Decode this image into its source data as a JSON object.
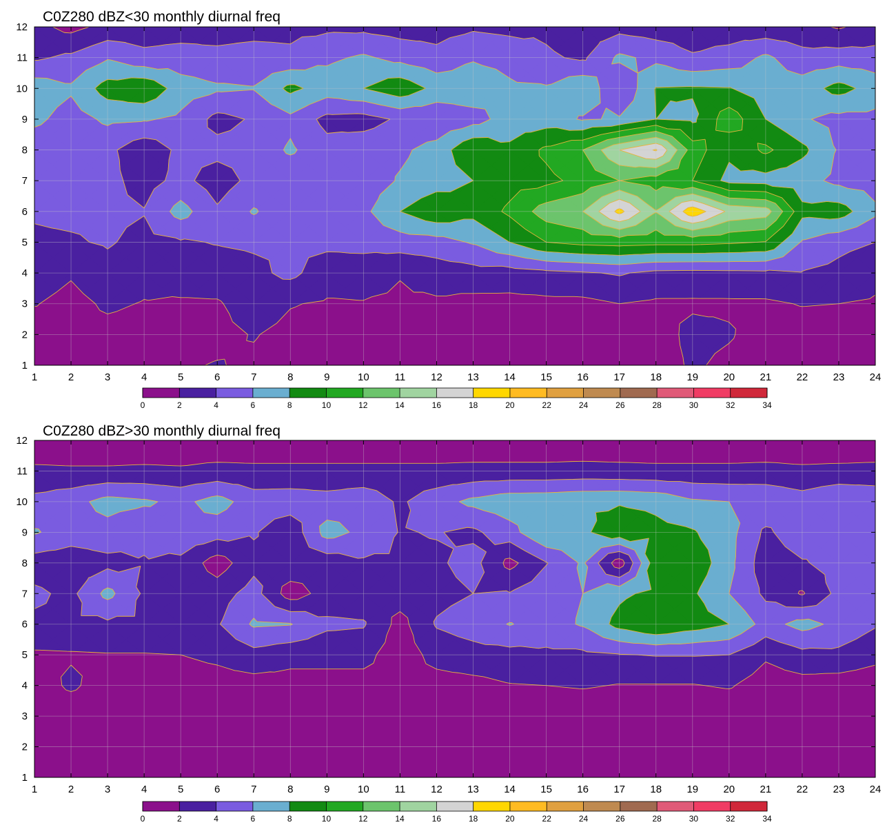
{
  "chart_data": [
    {
      "type": "heatmap",
      "title": "C0Z280 dBZ<30 monthly diurnal freq",
      "x_ticks": [
        1,
        2,
        3,
        4,
        5,
        6,
        7,
        8,
        9,
        10,
        11,
        12,
        13,
        14,
        15,
        16,
        17,
        18,
        19,
        20,
        21,
        22,
        23,
        24
      ],
      "y_ticks": [
        1,
        2,
        3,
        4,
        5,
        6,
        7,
        8,
        9,
        10,
        11,
        12
      ],
      "xlim": [
        1,
        24
      ],
      "ylim": [
        1,
        12
      ],
      "grid": true,
      "colorbar": {
        "levels": [
          0,
          2,
          4,
          6,
          8,
          10,
          12,
          14,
          16,
          18,
          20,
          22,
          24,
          26,
          28,
          30,
          32,
          34
        ],
        "colors": [
          "#8b108b",
          "#4a20a0",
          "#7a5ce0",
          "#6aaed0",
          "#128a12",
          "#22a822",
          "#6cc46c",
          "#a0d4a0",
          "#d4d4d4",
          "#ffd700",
          "#ffbb22",
          "#e0a040",
          "#bf8a50",
          "#a06a50",
          "#e05a78",
          "#f03c64",
          "#d0283a"
        ]
      },
      "x": [
        1,
        2,
        3,
        4,
        5,
        6,
        7,
        8,
        9,
        10,
        11,
        12,
        13,
        14,
        15,
        16,
        17,
        18,
        19,
        20,
        21,
        22,
        23,
        24
      ],
      "y": [
        1,
        2,
        3,
        4,
        5,
        6,
        7,
        8,
        9,
        10,
        11,
        12
      ],
      "z": [
        [
          0.6,
          1.0,
          1.2,
          1.0,
          1.8,
          2.1,
          1.7,
          1.2,
          1.7,
          1.1,
          0.9,
          1.1,
          1.0,
          1.1,
          1.0,
          1.7,
          1.0,
          1.0,
          2.3,
          1.5,
          1.0,
          1.0,
          1.0,
          1.0
        ],
        [
          1.0,
          1.3,
          1.4,
          1.2,
          1.3,
          1.5,
          2.1,
          1.5,
          1.3,
          1.2,
          1.0,
          1.2,
          1.2,
          1.0,
          1.0,
          1.1,
          1.0,
          1.0,
          2.6,
          2.2,
          1.0,
          1.0,
          1.0,
          1.0
        ],
        [
          2.1,
          1.4,
          2.3,
          1.9,
          1.7,
          1.8,
          3.0,
          2.1,
          1.8,
          1.9,
          1.7,
          1.7,
          1.4,
          1.4,
          1.5,
          1.5,
          2.0,
          1.7,
          1.7,
          1.7,
          1.7,
          2.1,
          2.0,
          1.8
        ],
        [
          3.0,
          2.2,
          3.3,
          2.6,
          3.2,
          3.1,
          3.5,
          4.5,
          2.9,
          2.8,
          2.1,
          2.9,
          3.2,
          3.1,
          3.5,
          3.8,
          4.2,
          3.5,
          3.4,
          3.5,
          3.6,
          3.9,
          3.4,
          2.5
        ],
        [
          3.7,
          3.8,
          4.2,
          3.4,
          3.8,
          4.1,
          4.3,
          4.1,
          4.5,
          4.7,
          5.0,
          5.2,
          6.2,
          8.0,
          10.0,
          10.6,
          10.8,
          10.6,
          10.6,
          10.3,
          9.9,
          5.8,
          4.6,
          4.0
        ],
        [
          4.2,
          4.4,
          4.4,
          4.1,
          6.8,
          4.3,
          6.2,
          4.6,
          4.8,
          5.5,
          8.0,
          9.6,
          8.6,
          10.4,
          13.0,
          14.0,
          18.6,
          14.1,
          19.4,
          15.6,
          15.0,
          8.6,
          9.0,
          6.4
        ],
        [
          4.1,
          4.0,
          4.6,
          3.2,
          4.6,
          3.0,
          4.6,
          4.5,
          4.6,
          4.8,
          6.2,
          7.1,
          8.0,
          9.2,
          9.5,
          10.6,
          12.0,
          11.0,
          10.0,
          7.4,
          7.2,
          6.7,
          5.5,
          5.1
        ],
        [
          4.6,
          4.3,
          4.5,
          2.6,
          4.5,
          4.6,
          4.7,
          6.3,
          4.7,
          5.2,
          5.6,
          6.8,
          9.8,
          8.4,
          10.4,
          12.0,
          16.0,
          18.2,
          11.0,
          8.4,
          10.4,
          8.5,
          5.8,
          5.8
        ],
        [
          6.5,
          5.1,
          6.4,
          6.2,
          5.6,
          3.4,
          4.2,
          5.5,
          3.4,
          3.2,
          4.3,
          4.3,
          5.2,
          6.9,
          7.0,
          5.8,
          6.2,
          8.0,
          7.6,
          11.2,
          8.0,
          6.2,
          5.4,
          5.4
        ],
        [
          7.2,
          6.3,
          8.9,
          9.7,
          7.0,
          6.3,
          6.1,
          8.5,
          7.1,
          8.0,
          9.4,
          7.4,
          7.3,
          6.3,
          6.2,
          7.7,
          4.0,
          8.1,
          8.2,
          8.1,
          7.0,
          7.0,
          8.7,
          7.2
        ],
        [
          3.7,
          4.4,
          5.8,
          4.5,
          4.8,
          4.5,
          4.8,
          4.4,
          5.6,
          6.3,
          5.4,
          4.6,
          5.8,
          5.4,
          4.3,
          3.7,
          6.4,
          5.5,
          4.2,
          4.8,
          6.4,
          4.7,
          5.0,
          4.8
        ],
        [
          2.6,
          1.4,
          2.6,
          3.0,
          3.1,
          3.2,
          3.3,
          3.5,
          3.6,
          3.5,
          3.1,
          3.2,
          3.7,
          3.4,
          3.6,
          2.8,
          3.3,
          2.9,
          3.0,
          2.9,
          2.6,
          2.7,
          1.8,
          2.8
        ]
      ]
    },
    {
      "type": "heatmap",
      "title": "C0Z280 dBZ>30 monthly diurnal freq",
      "x_ticks": [
        1,
        2,
        3,
        4,
        5,
        6,
        7,
        8,
        9,
        10,
        11,
        12,
        13,
        14,
        15,
        16,
        17,
        18,
        19,
        20,
        21,
        22,
        23,
        24
      ],
      "y_ticks": [
        1,
        2,
        3,
        4,
        5,
        6,
        7,
        8,
        9,
        10,
        11,
        12
      ],
      "xlim": [
        1,
        24
      ],
      "ylim": [
        1,
        12
      ],
      "grid": true,
      "colorbar": {
        "levels": [
          0,
          2,
          4,
          6,
          8,
          10,
          12,
          14,
          16,
          18,
          20,
          22,
          24,
          26,
          28,
          30,
          32,
          34
        ],
        "colors": [
          "#8b108b",
          "#4a20a0",
          "#7a5ce0",
          "#6aaed0",
          "#128a12",
          "#22a822",
          "#6cc46c",
          "#a0d4a0",
          "#d4d4d4",
          "#ffd700",
          "#ffbb22",
          "#e0a040",
          "#bf8a50",
          "#a06a50",
          "#e05a78",
          "#f03c64",
          "#d0283a"
        ]
      },
      "x": [
        1,
        2,
        3,
        4,
        5,
        6,
        7,
        8,
        9,
        10,
        11,
        12,
        13,
        14,
        15,
        16,
        17,
        18,
        19,
        20,
        21,
        22,
        23,
        24
      ],
      "y": [
        1,
        2,
        3,
        4,
        5,
        6,
        7,
        8,
        9,
        10,
        11,
        12
      ],
      "z": [
        [
          0.2,
          0.2,
          0.2,
          0.2,
          0.2,
          0.2,
          0.2,
          0.2,
          0.2,
          0.2,
          0.2,
          0.2,
          0.2,
          0.2,
          0.2,
          0.2,
          0.2,
          0.2,
          0.2,
          0.2,
          0.2,
          0.2,
          0.2,
          0.2
        ],
        [
          0.3,
          0.3,
          0.3,
          0.3,
          0.3,
          0.3,
          0.3,
          0.3,
          0.3,
          0.3,
          0.3,
          0.3,
          0.3,
          0.3,
          0.3,
          0.3,
          0.3,
          0.3,
          0.3,
          0.3,
          0.3,
          0.3,
          0.3,
          0.3
        ],
        [
          0.4,
          0.4,
          0.4,
          0.4,
          0.4,
          0.4,
          0.4,
          0.4,
          0.4,
          0.4,
          0.4,
          0.4,
          0.4,
          0.4,
          0.4,
          0.4,
          0.4,
          0.4,
          0.4,
          0.4,
          0.4,
          0.4,
          0.4,
          0.4
        ],
        [
          0.8,
          2.4,
          0.9,
          0.9,
          1.0,
          1.2,
          1.2,
          1.3,
          1.3,
          1.3,
          1.2,
          1.2,
          1.4,
          1.9,
          2.0,
          2.2,
          1.9,
          1.9,
          1.9,
          2.2,
          1.0,
          1.2,
          1.0,
          0.8
        ],
        [
          1.7,
          1.8,
          1.9,
          1.9,
          2.0,
          2.4,
          3.3,
          2.6,
          2.6,
          2.6,
          0.9,
          2.7,
          3.2,
          3.3,
          3.6,
          3.6,
          3.9,
          4.1,
          4.1,
          4.0,
          2.3,
          3.4,
          3.5,
          2.6
        ],
        [
          3.6,
          3.6,
          3.6,
          3.6,
          3.7,
          3.8,
          6.3,
          6.1,
          4.4,
          4.2,
          1.3,
          4.2,
          5.0,
          6.1,
          5.2,
          6.2,
          8.7,
          10.0,
          9.0,
          8.0,
          5.2,
          6.7,
          5.5,
          4.2
        ],
        [
          4.4,
          3.5,
          6.6,
          3.7,
          3.8,
          3.1,
          4.8,
          1.0,
          2.8,
          2.8,
          3.0,
          3.4,
          4.0,
          4.1,
          5.3,
          6.0,
          7.6,
          8.5,
          8.3,
          6.0,
          3.6,
          1.8,
          4.6,
          4.8
        ],
        [
          3.0,
          2.7,
          3.4,
          3.9,
          3.5,
          1.0,
          3.4,
          3.5,
          2.8,
          3.7,
          3.7,
          3.7,
          4.7,
          1.4,
          3.9,
          6.3,
          0.8,
          9.4,
          9.5,
          6.6,
          2.8,
          3.8,
          4.8,
          5.1
        ],
        [
          6.2,
          5.1,
          5.3,
          4.3,
          5.5,
          4.9,
          4.2,
          2.6,
          6.8,
          5.5,
          3.9,
          4.1,
          3.6,
          5.2,
          8.0,
          7.6,
          9.4,
          8.6,
          8.2,
          6.7,
          3.6,
          5.4,
          4.5,
          5.2
        ],
        [
          4.6,
          5.3,
          6.7,
          6.3,
          5.5,
          6.8,
          5.0,
          5.1,
          4.8,
          5.3,
          3.7,
          5.2,
          6.5,
          7.3,
          7.4,
          7.7,
          7.8,
          7.5,
          6.3,
          6.0,
          5.8,
          4.9,
          6.0,
          5.5
        ],
        [
          2.4,
          2.3,
          2.3,
          2.4,
          2.3,
          2.6,
          2.5,
          2.5,
          2.5,
          2.5,
          2.5,
          2.5,
          2.6,
          2.6,
          2.6,
          2.7,
          2.6,
          2.5,
          2.5,
          2.5,
          2.6,
          2.4,
          2.5,
          2.6
        ],
        [
          0.5,
          0.5,
          0.5,
          0.5,
          0.5,
          0.5,
          0.5,
          0.5,
          0.5,
          0.5,
          0.5,
          0.5,
          0.5,
          0.5,
          0.5,
          0.5,
          0.5,
          0.5,
          0.5,
          0.5,
          0.5,
          0.5,
          0.5,
          0.5
        ]
      ]
    }
  ]
}
